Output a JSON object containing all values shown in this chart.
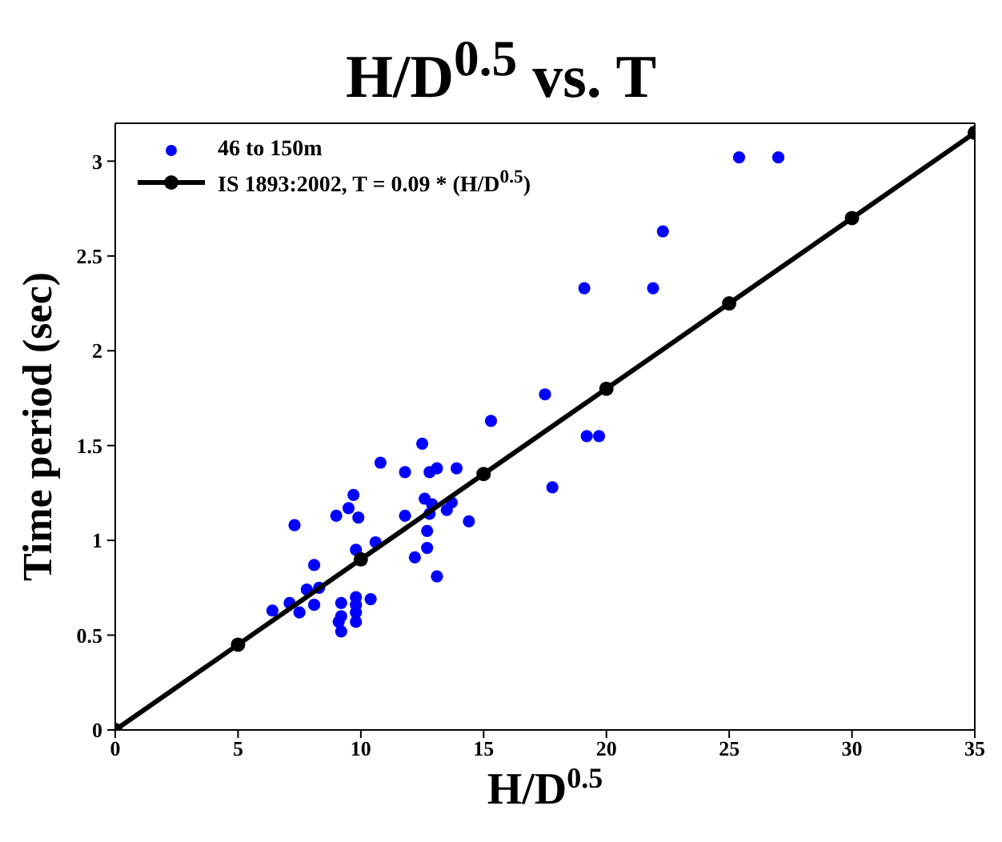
{
  "chart_data": {
    "type": "scatter",
    "title": "H/D$^{0.5}$ vs. T",
    "xlabel": "H/D$^{0.5}$",
    "ylabel": "Time period (sec)",
    "xlim": [
      0,
      35
    ],
    "xticks": [
      0,
      5,
      10,
      15,
      20,
      25,
      30,
      35
    ],
    "ylim": [
      0,
      3.2
    ],
    "yticks": [
      0,
      0.5,
      1,
      1.5,
      2,
      2.5,
      3
    ],
    "grid": false,
    "legend": "top left",
    "series": [
      {
        "name": "46 to 150m",
        "type": "scatter",
        "marker": "circle",
        "color": "#0000ff",
        "x": [
          25.4,
          27.0,
          22.3,
          19.1,
          21.9,
          17.5,
          15.3,
          12.5,
          10.8,
          11.8,
          12.8,
          13.1,
          13.9,
          9.7,
          9.5,
          9.0,
          9.9,
          7.3,
          11.8,
          12.6,
          12.9,
          12.8,
          13.5,
          13.7,
          14.4,
          12.7,
          10.6,
          9.8,
          12.7,
          12.2,
          8.1,
          13.1,
          7.8,
          8.3,
          7.1,
          6.4,
          7.5,
          8.1,
          9.2,
          9.8,
          9.8,
          9.8,
          10.4,
          9.2,
          9.1,
          9.8,
          9.2,
          17.8,
          19.2,
          19.7
        ],
        "values": [
          3.02,
          3.02,
          2.63,
          2.33,
          2.33,
          1.77,
          1.63,
          1.51,
          1.41,
          1.36,
          1.36,
          1.38,
          1.38,
          1.24,
          1.17,
          1.13,
          1.12,
          1.08,
          1.13,
          1.22,
          1.19,
          1.14,
          1.16,
          1.2,
          1.1,
          1.05,
          0.99,
          0.95,
          0.96,
          0.91,
          0.87,
          0.81,
          0.74,
          0.75,
          0.67,
          0.63,
          0.62,
          0.66,
          0.67,
          0.7,
          0.66,
          0.62,
          0.69,
          0.6,
          0.57,
          0.57,
          0.52,
          1.28,
          1.55,
          1.55
        ]
      },
      {
        "name": "IS 1893:2002, T = 0.09 * (H/D$^{0.5}$)",
        "type": "line",
        "marker": "circle",
        "line_style": "solid",
        "color": "#000000",
        "x": [
          0,
          5,
          10,
          15,
          20,
          25,
          30,
          35
        ],
        "values": [
          0,
          0.45,
          0.9,
          1.35,
          1.8,
          2.25,
          2.7,
          3.15
        ]
      }
    ]
  }
}
